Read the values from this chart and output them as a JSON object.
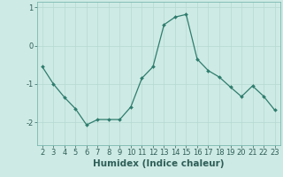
{
  "x": [
    2,
    3,
    4,
    5,
    6,
    7,
    8,
    9,
    10,
    11,
    12,
    13,
    14,
    15,
    16,
    17,
    18,
    19,
    20,
    21,
    22,
    23
  ],
  "y": [
    -0.55,
    -1.0,
    -1.35,
    -1.65,
    -2.07,
    -1.93,
    -1.93,
    -1.93,
    -1.6,
    -0.85,
    -0.55,
    0.55,
    0.75,
    0.82,
    -0.35,
    -0.65,
    -0.82,
    -1.08,
    -1.33,
    -1.05,
    -1.32,
    -1.68
  ],
  "line_color": "#2e7d6e",
  "marker": "D",
  "marker_size": 2.0,
  "background_color": "#ceeae4",
  "grid_color": "#b5d9d2",
  "xlabel": "Humidex (Indice chaleur)",
  "xlabel_fontsize": 7.5,
  "tick_fontsize": 6.0,
  "ylim": [
    -2.6,
    1.15
  ],
  "xlim": [
    1.5,
    23.5
  ],
  "yticks": [
    -2,
    -1,
    0,
    1
  ],
  "xticks": [
    2,
    3,
    4,
    5,
    6,
    7,
    8,
    9,
    10,
    11,
    12,
    13,
    14,
    15,
    16,
    17,
    18,
    19,
    20,
    21,
    22,
    23
  ]
}
